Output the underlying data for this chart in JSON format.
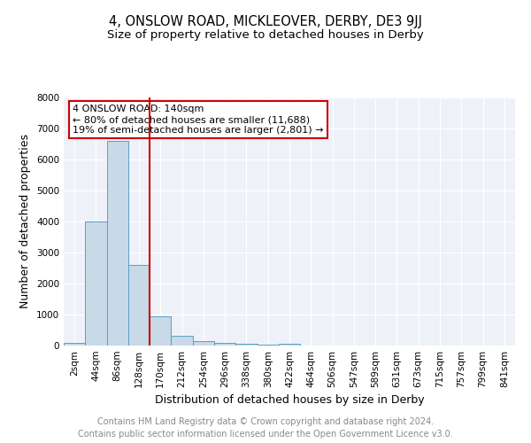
{
  "title": "4, ONSLOW ROAD, MICKLEOVER, DERBY, DE3 9JJ",
  "subtitle": "Size of property relative to detached houses in Derby",
  "xlabel": "Distribution of detached houses by size in Derby",
  "ylabel": "Number of detached properties",
  "footer_line1": "Contains HM Land Registry data © Crown copyright and database right 2024.",
  "footer_line2": "Contains public sector information licensed under the Open Government Licence v3.0.",
  "bin_labels": [
    "2sqm",
    "44sqm",
    "86sqm",
    "128sqm",
    "170sqm",
    "212sqm",
    "254sqm",
    "296sqm",
    "338sqm",
    "380sqm",
    "422sqm",
    "464sqm",
    "506sqm",
    "547sqm",
    "589sqm",
    "631sqm",
    "673sqm",
    "715sqm",
    "757sqm",
    "799sqm",
    "841sqm"
  ],
  "bar_values": [
    80,
    4000,
    6600,
    2600,
    950,
    320,
    130,
    80,
    60,
    40,
    50,
    0,
    0,
    0,
    0,
    0,
    0,
    0,
    0,
    0,
    0
  ],
  "bar_color": "#c8d9e8",
  "bar_edge_color": "#5a9fc5",
  "red_line_x": 3.5,
  "annotation_text": "4 ONSLOW ROAD: 140sqm\n← 80% of detached houses are smaller (11,688)\n19% of semi-detached houses are larger (2,801) →",
  "annotation_box_color": "#ffffff",
  "annotation_box_edge_color": "#cc0000",
  "annotation_text_color": "#000000",
  "red_line_color": "#cc0000",
  "ylim": [
    0,
    8000
  ],
  "yticks": [
    0,
    1000,
    2000,
    3000,
    4000,
    5000,
    6000,
    7000,
    8000
  ],
  "bg_color": "#eef2f8",
  "title_fontsize": 10.5,
  "subtitle_fontsize": 9.5,
  "axis_label_fontsize": 9,
  "tick_fontsize": 7.5,
  "footer_fontsize": 7,
  "annotation_fontsize": 8
}
